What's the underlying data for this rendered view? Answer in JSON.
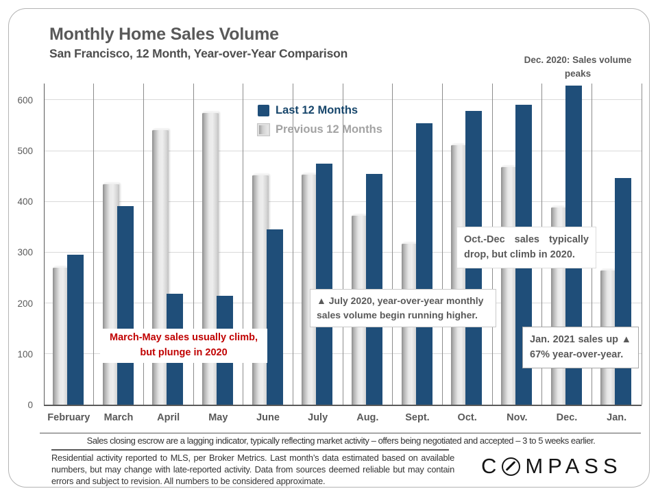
{
  "header": {
    "title": "Monthly Home Sales Volume",
    "subtitle": "San Francisco, 12 Month, Year-over-Year Comparison"
  },
  "chart_data": {
    "type": "bar",
    "title": "Monthly Home Sales Volume",
    "subtitle": "San Francisco, 12 Month, Year-over-Year Comparison",
    "categories": [
      "February",
      "March",
      "April",
      "May",
      "June",
      "July",
      "Aug.",
      "Sept.",
      "Oct.",
      "Nov.",
      "Dec.",
      "Jan."
    ],
    "series": [
      {
        "name": "Last 12 Months",
        "color": "#1F4E79",
        "values": [
          295,
          391,
          219,
          215,
          345,
          474,
          454,
          554,
          578,
          590,
          628,
          446
        ]
      },
      {
        "name": "Previous 12 Months",
        "color": "#D9D9D9",
        "values": [
          272,
          437,
          543,
          577,
          454,
          456,
          375,
          320,
          514,
          471,
          391,
          267
        ]
      }
    ],
    "ylabel": "",
    "xlabel": "",
    "ylim": [
      0,
      635
    ],
    "yticks": [
      0,
      100,
      200,
      300,
      400,
      500,
      600
    ],
    "grid": "horizontal light gray, vertical gray dividers between month groups",
    "legend_position": "inside top-left of plot"
  },
  "annotations": {
    "dec_peak": "Dec. 2020: Sales volume peaks",
    "march_may": "March-May sales usually climb, but plunge in 2020",
    "march_may_color": "#C00000",
    "july": "▲ July 2020, year-over-year monthly sales volume begin running higher.",
    "oct_dec": "Oct.-Dec sales typically drop, but climb in 2020.",
    "jan": "Jan. 2021 sales up ▲ 67% year-over-year."
  },
  "footnotes": {
    "line1": "Sales closing escrow are a lagging indicator, typically reflecting market activity – offers being negotiated and accepted – 3 to 5 weeks earlier.",
    "line2": "Residential activity reported to MLS, per Broker Metrics. Last month’s data estimated based on available numbers, but may change with late-reported activity. Data from sources deemed reliable but may contain errors and subject to revision. All numbers to be considered approximate."
  },
  "logo": {
    "c": "C",
    "rest": "MPASS",
    "brand": "Compass"
  },
  "colors": {
    "last12": "#1F4E79",
    "prev12": "#D9D9D9",
    "annotation_red": "#C00000",
    "text_gray": "#595959",
    "gridline": "#D9D9D9",
    "divider": "#8C8C8C"
  }
}
